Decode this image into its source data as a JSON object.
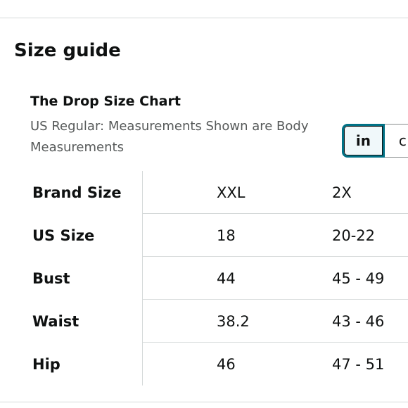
{
  "page": {
    "title": "Size guide"
  },
  "chart": {
    "title": "The Drop Size Chart",
    "subtitle": "US Regular: Measurements Shown are Body Measurements"
  },
  "unit_toggle": {
    "options": [
      "in",
      "c"
    ],
    "selected": "in"
  },
  "table": {
    "rows": [
      {
        "label": "Brand Size",
        "values": [
          "XXL",
          "2X"
        ]
      },
      {
        "label": "US Size",
        "values": [
          "18",
          "20-22"
        ]
      },
      {
        "label": "Bust",
        "values": [
          "44",
          "45 - 49"
        ]
      },
      {
        "label": "Waist",
        "values": [
          "38.2",
          "43 - 46"
        ]
      },
      {
        "label": "Hip",
        "values": [
          "46",
          "47 - 51"
        ]
      }
    ]
  },
  "colors": {
    "accent": "#007185",
    "text": "#0f1111",
    "muted": "#565959",
    "divider": "#d5d9d9"
  }
}
